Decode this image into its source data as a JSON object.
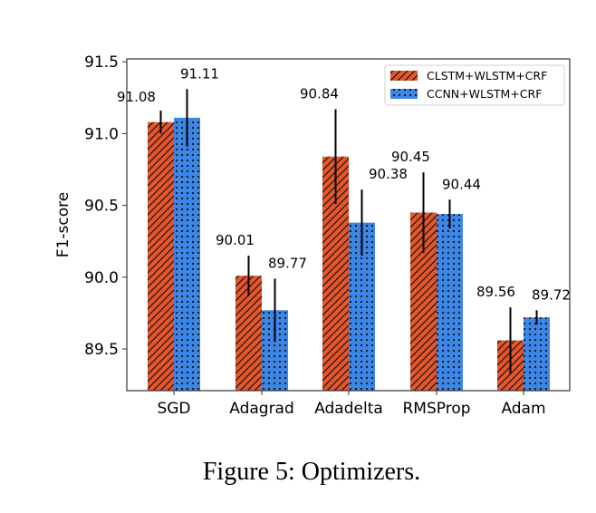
{
  "chart_data": {
    "type": "bar",
    "title": "",
    "xlabel": "",
    "ylabel": "F1-score",
    "ylim": [
      89.21,
      91.52
    ],
    "yticks": [
      89.5,
      90.0,
      90.5,
      91.0,
      91.5
    ],
    "ytick_labels": [
      "89.5",
      "90.0",
      "90.5",
      "91.0",
      "91.5"
    ],
    "categories": [
      "SGD",
      "Adagrad",
      "Adadelta",
      "RMSProp",
      "Adam"
    ],
    "series": [
      {
        "name": "CLSTM+WLSTM+CRF",
        "color": "#e8552a",
        "hatch": "diagonal",
        "values": [
          91.08,
          90.01,
          90.84,
          90.45,
          89.56
        ],
        "value_labels": [
          "91.08",
          "90.01",
          "90.84",
          "90.45",
          "89.56"
        ],
        "errors": [
          0.08,
          0.14,
          0.33,
          0.28,
          0.23
        ]
      },
      {
        "name": "CCNN+WLSTM+CRF",
        "color": "#3d86e6",
        "hatch": "dots",
        "values": [
          91.11,
          89.77,
          90.38,
          90.44,
          89.72
        ],
        "value_labels": [
          "91.11",
          "89.77",
          "90.38",
          "90.44",
          "89.72"
        ],
        "errors": [
          0.2,
          0.22,
          0.23,
          0.1,
          0.05
        ]
      }
    ],
    "legend": {
      "position": "top-right"
    },
    "grid": false
  },
  "caption": "Figure 5: Optimizers."
}
